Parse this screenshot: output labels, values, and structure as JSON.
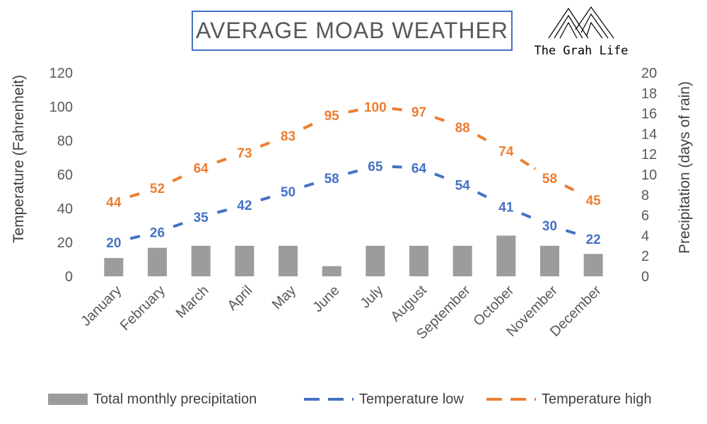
{
  "title": "AVERAGE MOAB WEATHER",
  "logo": {
    "text": "The Grah Life",
    "icon": "mountains-icon"
  },
  "chart_data": {
    "type": "bar+line",
    "categories": [
      "January",
      "February",
      "March",
      "April",
      "May",
      "June",
      "July",
      "August",
      "September",
      "October",
      "November",
      "December"
    ],
    "bar_series": {
      "name": "Total monthly precipitation",
      "axis": "right",
      "color": "#9c9c9c",
      "values": [
        1.8,
        2.8,
        3,
        3,
        3,
        1,
        3,
        3,
        3,
        4,
        3,
        2.2
      ]
    },
    "series": [
      {
        "name": "Temperature low",
        "axis": "left",
        "color": "#4472c4",
        "style": "dashed",
        "values": [
          20,
          26,
          35,
          42,
          50,
          58,
          65,
          64,
          54,
          41,
          30,
          22
        ]
      },
      {
        "name": "Temperature high",
        "axis": "left",
        "color": "#ed7d31",
        "style": "dashed",
        "values": [
          44,
          52,
          64,
          73,
          83,
          95,
          100,
          97,
          88,
          74,
          58,
          45
        ]
      }
    ],
    "ylabel": "Temperature (Fahrenheit)",
    "ylabel_right": "Precipitation (days of rain)",
    "ylim": [
      0,
      120
    ],
    "yticks": [
      0,
      20,
      40,
      60,
      80,
      100,
      120
    ],
    "ylim_right": [
      0,
      20
    ],
    "yticks_right": [
      0,
      2,
      4,
      6,
      8,
      10,
      12,
      14,
      16,
      18,
      20
    ],
    "grid": false,
    "legend_position": "bottom"
  }
}
